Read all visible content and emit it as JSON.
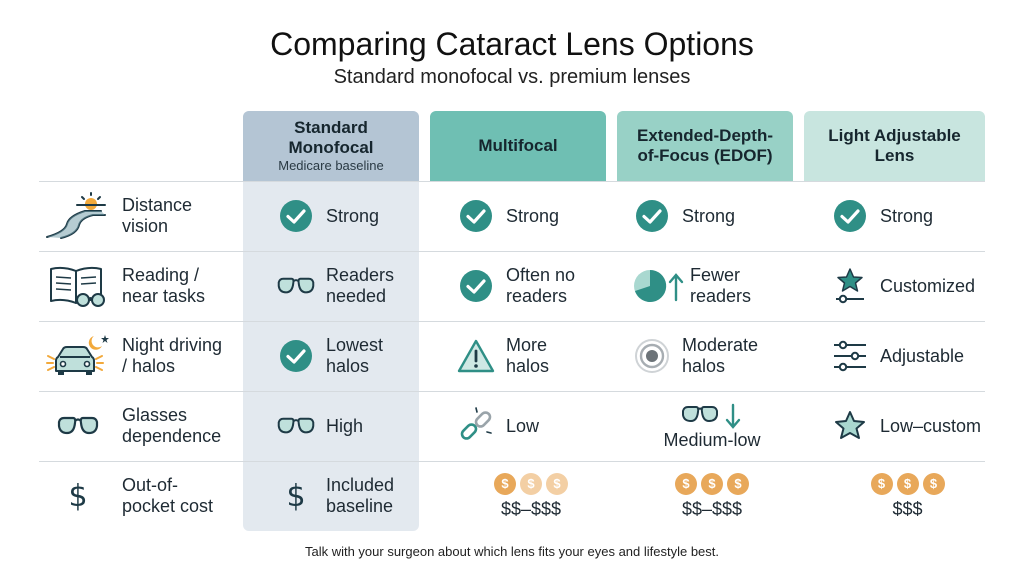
{
  "title": "Comparing Cataract Lens Options",
  "subtitle": "Standard monofocal vs. premium lenses",
  "columns": [
    {
      "label": "Standard\nMonofocal",
      "sub": "Medicare baseline"
    },
    {
      "label": "Multifocal",
      "sub": ""
    },
    {
      "label": "Extended-Depth-\nof-Focus (EDOF)",
      "sub": ""
    },
    {
      "label": "Light Adjustable\nLens",
      "sub": ""
    }
  ],
  "rows": [
    {
      "label": "Distance\nvision",
      "icon": "road-sun-icon",
      "cells": [
        {
          "text": "Strong",
          "icon": "check-icon"
        },
        {
          "text": "Strong",
          "icon": "check-icon"
        },
        {
          "text": "Strong",
          "icon": "check-icon"
        },
        {
          "text": "Strong",
          "icon": "check-icon"
        }
      ]
    },
    {
      "label": "Reading /\nnear tasks",
      "icon": "book-glasses-icon",
      "cells": [
        {
          "text": "Readers\nneeded",
          "icon": "glasses-icon"
        },
        {
          "text": "Often no\nreaders",
          "icon": "check-icon"
        },
        {
          "text": "Fewer\nreaders",
          "icon": "pie-arrow-up-icon"
        },
        {
          "text": "Customized",
          "icon": "star-slider-icon"
        }
      ]
    },
    {
      "label": "Night driving\n/ halos",
      "icon": "car-moon-icon",
      "cells": [
        {
          "text": "Lowest\nhalos",
          "icon": "check-icon"
        },
        {
          "text": "More\nhalos",
          "icon": "warning-icon"
        },
        {
          "text": "Moderate\nhalos",
          "icon": "halo-icon"
        },
        {
          "text": "Adjustable",
          "icon": "sliders-icon"
        }
      ]
    },
    {
      "label": "Glasses\ndependence",
      "icon": "glasses-icon",
      "cells": [
        {
          "text": "High",
          "icon": "glasses-icon"
        },
        {
          "text": "Low",
          "icon": "broken-link-icon"
        },
        {
          "text": "Medium-low",
          "icon": "glasses-arrow-down-icon"
        },
        {
          "text": "Low–custom",
          "icon": "star-icon"
        }
      ]
    },
    {
      "label": "Out-of-\npocket cost",
      "icon": "dollar-icon",
      "cells": [
        {
          "text": "Included\nbaseline",
          "icon": "dollar-icon"
        },
        {
          "text": "$$–$$$",
          "coins": 3,
          "faded": 2
        },
        {
          "text": "$$–$$$",
          "coins": 3,
          "faded": 0
        },
        {
          "text": "$$$",
          "coins": 3,
          "faded": 0
        }
      ]
    }
  ],
  "footer": "Talk with your surgeon about which lens fits your eyes and lifestyle best.",
  "colors": {
    "teal": "#2f8f86",
    "ink": "#1e3a46",
    "coin": "#e8a85a"
  }
}
